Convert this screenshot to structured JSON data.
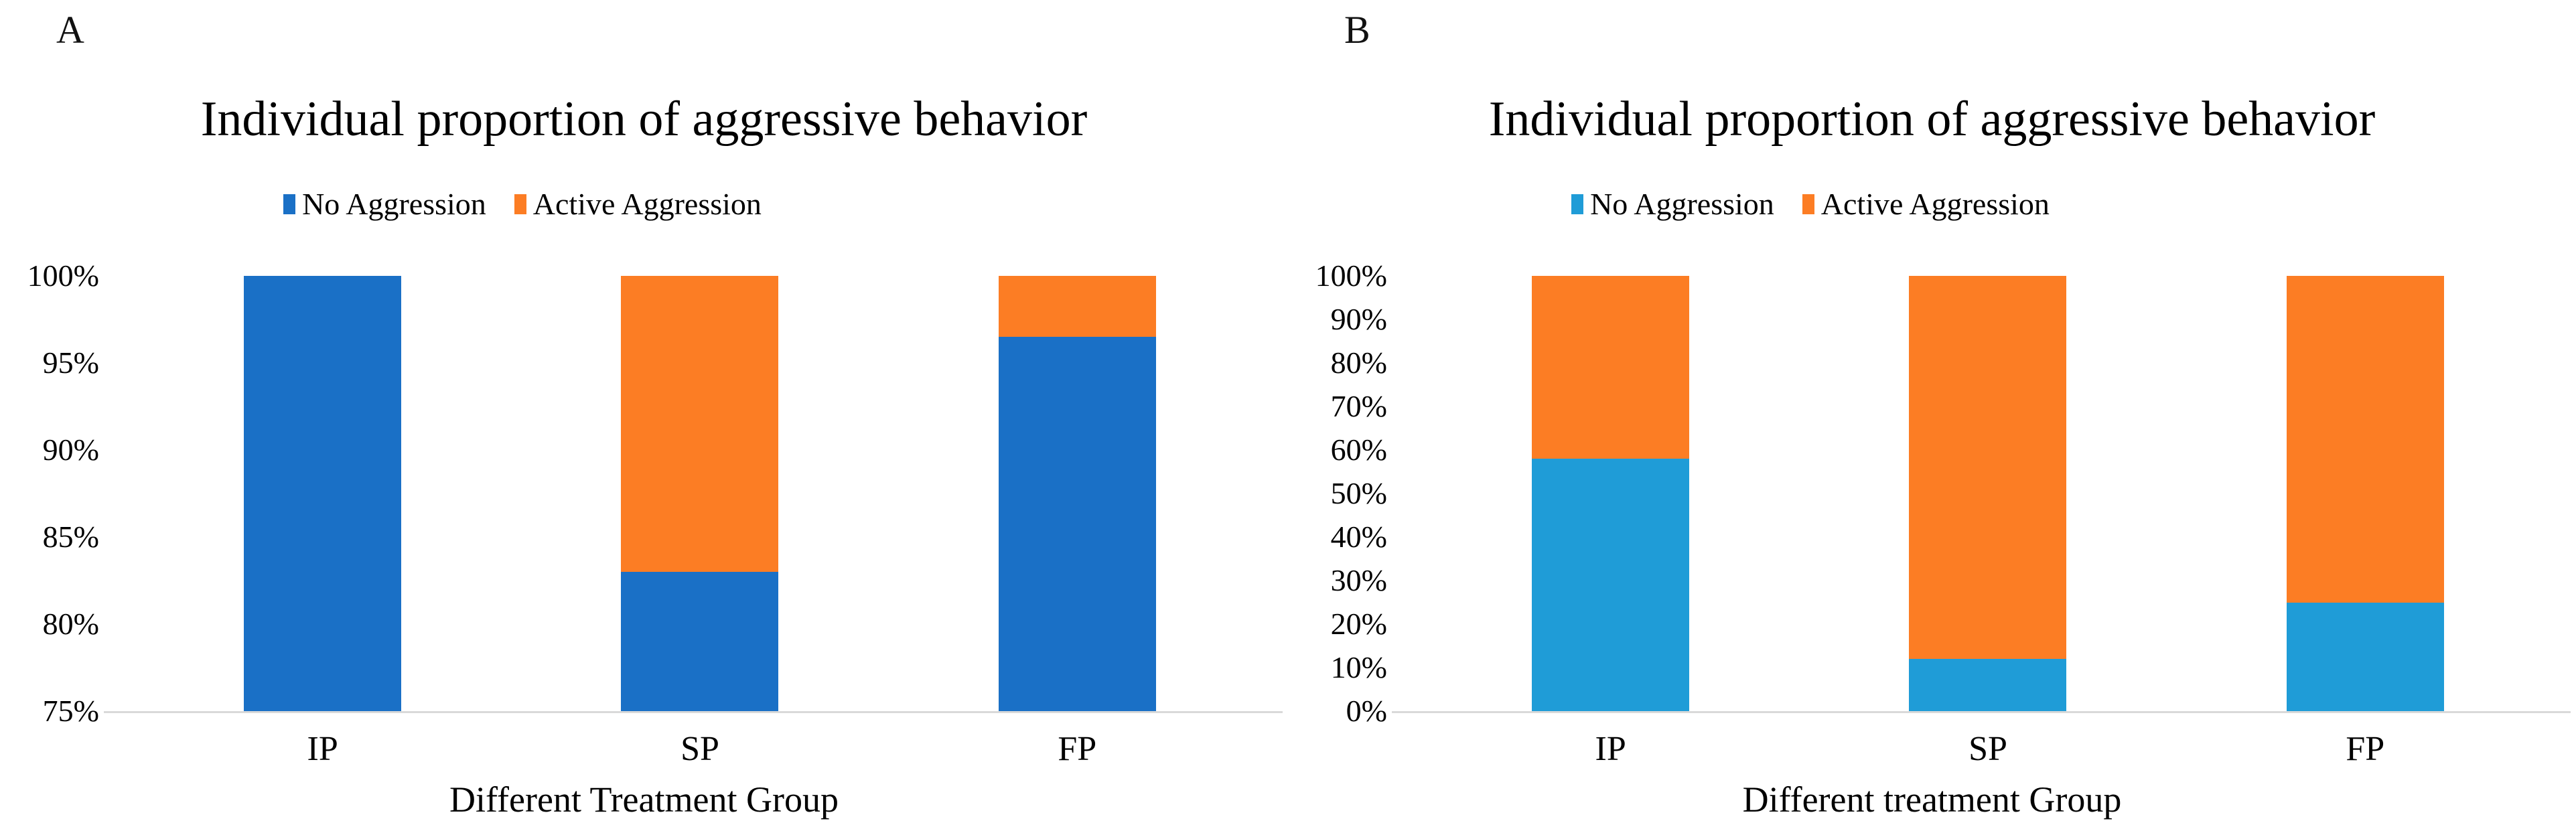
{
  "figure": {
    "background": "#ffffff",
    "text_color": "#000000",
    "axis_line_color": "#d9d9d9"
  },
  "chart_data": [
    {
      "type": "bar",
      "stacked": true,
      "panel_label": "A",
      "title": "Individual proportion of aggressive behavior",
      "categories": [
        "IP",
        "SP",
        "FP"
      ],
      "series": [
        {
          "name": "No Aggression",
          "color": "#1a70c6",
          "values": [
            100,
            83,
            96.5
          ]
        },
        {
          "name": "Active Aggression",
          "color": "#fc7d24",
          "values": [
            0,
            17,
            3.5
          ]
        }
      ],
      "xlabel": "Different Treatment Group",
      "ylabel": "",
      "ylim": [
        75,
        100
      ],
      "ytick_step": 5,
      "ytick_labels": [
        "100%",
        "95%",
        "90%",
        "85%",
        "80%",
        "75%"
      ],
      "legend_position": "top-center",
      "grid": false,
      "units": "percent"
    },
    {
      "type": "bar",
      "stacked": true,
      "panel_label": "B",
      "title": "Individual proportion of aggressive behavior",
      "categories": [
        "IP",
        "SP",
        "FP"
      ],
      "series": [
        {
          "name": "No Aggression",
          "color": "#1f9cd7",
          "values": [
            58,
            12,
            25
          ]
        },
        {
          "name": "Active Aggression",
          "color": "#fc7d24",
          "values": [
            42,
            88,
            75
          ]
        }
      ],
      "xlabel": "Different treatment Group",
      "ylabel": "",
      "ylim": [
        0,
        100
      ],
      "ytick_step": 10,
      "ytick_labels": [
        "100%",
        "90%",
        "80%",
        "70%",
        "60%",
        "50%",
        "40%",
        "30%",
        "20%",
        "10%",
        "0%"
      ],
      "legend_position": "top-center",
      "grid": false,
      "units": "percent"
    }
  ]
}
